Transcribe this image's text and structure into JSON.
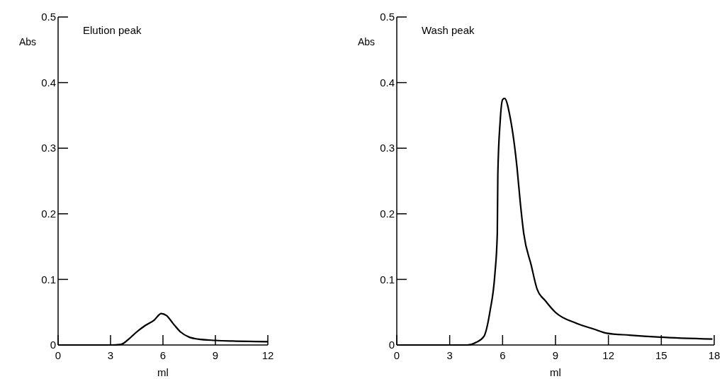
{
  "chart_data": [
    {
      "type": "line",
      "title": "Elution peak",
      "xlabel": "ml",
      "ylabel": "Abs",
      "xlim": [
        0,
        12
      ],
      "xticks": [
        0,
        3,
        6,
        9,
        12
      ],
      "ylim": [
        0,
        0.5
      ],
      "yticks": [
        0,
        0.1,
        0.2,
        0.3,
        0.4,
        0.5
      ],
      "grid": false,
      "marker": "none",
      "line_style": "solid",
      "series": [
        {
          "color": "#000000",
          "x": [
            0,
            3,
            3.6,
            4,
            4.5,
            5,
            5.5,
            5.9,
            6.2,
            6.6,
            7,
            7.5,
            8,
            9,
            10,
            12
          ],
          "values": [
            0,
            0,
            0.001,
            0.008,
            0.02,
            0.03,
            0.038,
            0.048,
            0.045,
            0.032,
            0.02,
            0.012,
            0.009,
            0.007,
            0.006,
            0.005
          ]
        }
      ]
    },
    {
      "type": "line",
      "title": "Wash peak",
      "xlabel": "ml",
      "ylabel": "Abs",
      "xlim": [
        0,
        18
      ],
      "xticks": [
        0,
        3,
        6,
        9,
        12,
        15,
        18
      ],
      "ylim": [
        0,
        0.5
      ],
      "yticks": [
        0,
        0.1,
        0.2,
        0.3,
        0.4,
        0.5
      ],
      "grid": false,
      "marker": "none",
      "line_style": "solid",
      "series": [
        {
          "color": "#000000",
          "x": [
            0,
            3,
            4,
            4.5,
            4.94,
            5.29,
            5.56,
            5.7,
            5.73,
            5.86,
            6,
            6.11,
            6.45,
            6.82,
            7,
            7.2,
            7.62,
            7.96,
            8.44,
            8.99,
            10.2,
            11.2,
            11.9,
            13.2,
            14.9,
            17.9
          ],
          "values": [
            0,
            0,
            0,
            0.004,
            0.013,
            0.052,
            0.107,
            0.17,
            0.26,
            0.34,
            0.374,
            0.376,
            0.344,
            0.27,
            0.218,
            0.17,
            0.122,
            0.085,
            0.067,
            0.05,
            0.033,
            0.024,
            0.018,
            0.015,
            0.012,
            0.009
          ]
        }
      ]
    }
  ]
}
